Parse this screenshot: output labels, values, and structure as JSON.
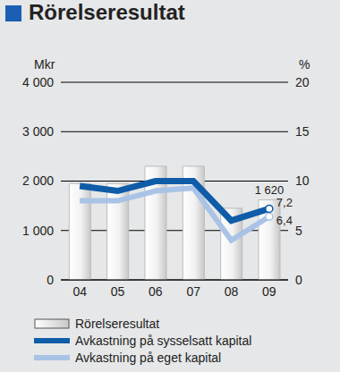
{
  "chart_data": {
    "type": "bar",
    "title": "Rörelseresultat",
    "categories": [
      "04",
      "05",
      "06",
      "07",
      "08",
      "09"
    ],
    "y_label": "Mkr",
    "y2_label": "%",
    "ylim": [
      0,
      4000
    ],
    "yticks": [
      0,
      {
        "value": 1000,
        "label": "1 000"
      },
      {
        "value": 2000,
        "label": "2 000"
      },
      {
        "value": 3000,
        "label": "3 000"
      },
      {
        "value": 4000,
        "label": "4 000"
      }
    ],
    "y2lim": [
      0,
      20
    ],
    "y2ticks": [
      0,
      5,
      10,
      15,
      20
    ],
    "grid": true,
    "legend": "bottom",
    "series": [
      {
        "name": "Rörelseresultat",
        "type": "bar",
        "color": "#c8c8c8",
        "values": [
          1950,
          1950,
          2300,
          2300,
          1450,
          1620
        ],
        "data_labels": true,
        "value_labels": [
          null,
          null,
          null,
          null,
          null,
          "1 620"
        ]
      },
      {
        "name": "Avkastning på sysselsatt kapital",
        "type": "line",
        "axis": "y2",
        "color": "#0f5ca8",
        "marker": "circle",
        "values": [
          9.5,
          9.0,
          10.0,
          10.0,
          6.0,
          7.2
        ],
        "data_labels": true,
        "value_labels": [
          null,
          null,
          null,
          null,
          null,
          "7,2"
        ]
      },
      {
        "name": "Avkastning på eget kapital",
        "type": "line",
        "axis": "y2",
        "color": "#a9c3e6",
        "marker": "circle",
        "values": [
          8.0,
          8.0,
          9.0,
          9.3,
          4.0,
          6.4
        ],
        "data_labels": true,
        "value_labels": [
          null,
          null,
          null,
          null,
          null,
          "6,4"
        ]
      }
    ]
  }
}
